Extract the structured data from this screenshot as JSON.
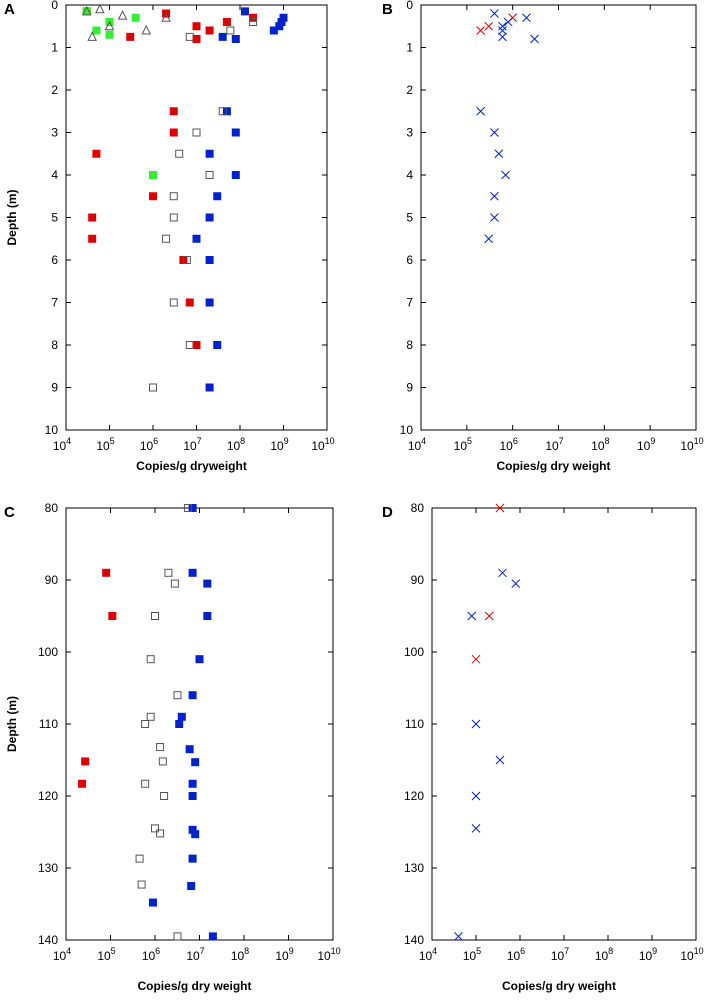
{
  "figure": {
    "colors": {
      "red": "#dd0000",
      "blue": "#0022cc",
      "green": "#33ee33",
      "grey": "#555555"
    }
  },
  "chart_data": [
    {
      "panel": "A",
      "type": "scatter",
      "xscale": "log",
      "xlim": [
        10000,
        10000000000
      ],
      "ylim": [
        0,
        10
      ],
      "y_inverted": true,
      "xlabel": "Copies/g dryweight",
      "ylabel": "Depth (m)",
      "xticks": [
        10000,
        100000,
        1000000,
        10000000,
        100000000,
        1000000000,
        10000000000
      ],
      "xtick_exponents": [
        "4",
        "5",
        "6",
        "7",
        "8",
        "9",
        "10"
      ],
      "yticks": [
        0,
        1,
        2,
        3,
        4,
        5,
        6,
        7,
        8,
        9,
        10
      ],
      "ytick_labels": [
        "0",
        "1",
        "2",
        "3",
        "4",
        "5",
        "6",
        "7",
        "8",
        "9",
        "10"
      ],
      "series": [
        {
          "name": "red filled squares",
          "marker": "square-filled",
          "color": "#dd0000",
          "points": [
            [
              30000,
              0.15
            ],
            [
              2000000,
              0.2
            ],
            [
              200000000,
              0.3
            ],
            [
              50000000,
              0.4
            ],
            [
              10000000,
              0.5
            ],
            [
              20000000,
              0.6
            ],
            [
              300000,
              0.75
            ],
            [
              10000000,
              0.8
            ],
            [
              3000000,
              2.5
            ],
            [
              3000000,
              3.0
            ],
            [
              50000,
              3.5
            ],
            [
              1000000,
              4.5
            ],
            [
              40000,
              5.0
            ],
            [
              40000,
              5.5
            ],
            [
              5000000,
              6.0
            ],
            [
              7000000,
              7.0
            ],
            [
              10000000,
              8.0
            ]
          ]
        },
        {
          "name": "blue filled squares",
          "marker": "square-filled",
          "color": "#0022cc",
          "points": [
            [
              130000000,
              0.15
            ],
            [
              1000000000,
              0.3
            ],
            [
              900000000,
              0.4
            ],
            [
              800000000,
              0.5
            ],
            [
              600000000,
              0.6
            ],
            [
              40000000,
              0.75
            ],
            [
              80000000,
              0.8
            ],
            [
              50000000,
              2.5
            ],
            [
              80000000,
              3.0
            ],
            [
              20000000,
              3.5
            ],
            [
              80000000,
              4.0
            ],
            [
              30000000,
              4.5
            ],
            [
              20000000,
              5.0
            ],
            [
              10000000,
              5.5
            ],
            [
              20000000,
              6.0
            ],
            [
              20000000,
              7.0
            ],
            [
              30000000,
              8.0
            ],
            [
              20000000,
              9.0
            ]
          ]
        },
        {
          "name": "green filled squares",
          "marker": "square-filled",
          "color": "#33ee33",
          "points": [
            [
              30000,
              0.15
            ],
            [
              400000,
              0.3
            ],
            [
              100000,
              0.4
            ],
            [
              50000,
              0.6
            ],
            [
              100000,
              0.7
            ],
            [
              1000000,
              4.0
            ]
          ]
        },
        {
          "name": "open squares",
          "marker": "square-open",
          "color": "#555555",
          "points": [
            [
              200000000,
              0.4
            ],
            [
              60000000,
              0.6
            ],
            [
              7000000,
              0.75
            ],
            [
              40000000,
              2.5
            ],
            [
              10000000,
              3.0
            ],
            [
              4000000,
              3.5
            ],
            [
              20000000,
              4.0
            ],
            [
              3000000,
              4.5
            ],
            [
              3000000,
              5.0
            ],
            [
              2000000,
              5.5
            ],
            [
              6000000,
              6.0
            ],
            [
              3000000,
              7.0
            ],
            [
              7000000,
              8.0
            ],
            [
              1000000,
              9.0
            ]
          ]
        },
        {
          "name": "open triangles",
          "marker": "triangle-open",
          "color": "#555555",
          "points": [
            [
              60000,
              0.1
            ],
            [
              30000,
              0.15
            ],
            [
              200000,
              0.25
            ],
            [
              2000000,
              0.3
            ],
            [
              100000,
              0.5
            ],
            [
              700000,
              0.6
            ],
            [
              40000,
              0.75
            ]
          ]
        }
      ]
    },
    {
      "panel": "B",
      "type": "scatter",
      "xscale": "log",
      "xlim": [
        10000,
        10000000000
      ],
      "ylim": [
        0,
        10
      ],
      "y_inverted": true,
      "xlabel": "Copies/g dry weight",
      "ylabel": "",
      "xticks": [
        10000,
        100000,
        1000000,
        10000000,
        100000000,
        1000000000,
        10000000000
      ],
      "xtick_exponents": [
        "4",
        "5",
        "6",
        "7",
        "8",
        "9",
        "10"
      ],
      "yticks": [
        0,
        1,
        2,
        3,
        4,
        5,
        6,
        7,
        8,
        9,
        10
      ],
      "ytick_labels": [
        "0",
        "1",
        "2",
        "3",
        "4",
        "5",
        "6",
        "7",
        "8",
        "9",
        "10"
      ],
      "series": [
        {
          "name": "red crosses",
          "marker": "x",
          "color": "#dd0000",
          "points": [
            [
              1000000,
              0.3
            ],
            [
              300000,
              0.5
            ],
            [
              200000,
              0.6
            ]
          ]
        },
        {
          "name": "blue crosses",
          "marker": "x",
          "color": "#0022cc",
          "points": [
            [
              400000,
              0.2
            ],
            [
              2000000,
              0.3
            ],
            [
              800000,
              0.4
            ],
            [
              600000,
              0.5
            ],
            [
              600000,
              0.6
            ],
            [
              600000,
              0.75
            ],
            [
              3000000,
              0.8
            ],
            [
              200000,
              2.5
            ],
            [
              400000,
              3.0
            ],
            [
              500000,
              3.5
            ],
            [
              700000,
              4.0
            ],
            [
              400000,
              4.5
            ],
            [
              400000,
              5.0
            ],
            [
              300000,
              5.5
            ]
          ]
        }
      ]
    },
    {
      "panel": "C",
      "type": "scatter",
      "xscale": "log",
      "xlim": [
        10000,
        10000000000
      ],
      "ylim": [
        80,
        140
      ],
      "y_inverted": true,
      "xlabel": "Copies/g dry weight",
      "ylabel": "Depth (m)",
      "xticks": [
        10000,
        100000,
        1000000,
        10000000,
        100000000,
        1000000000,
        10000000000
      ],
      "xtick_exponents": [
        "4",
        "5",
        "6",
        "7",
        "8",
        "9",
        "10"
      ],
      "yticks": [
        80,
        90,
        100,
        110,
        120,
        130,
        140
      ],
      "ytick_labels": [
        "80",
        "90",
        "100",
        "110",
        "120",
        "130",
        "140"
      ],
      "series": [
        {
          "name": "red filled squares",
          "marker": "square-filled",
          "color": "#dd0000",
          "points": [
            [
              80000,
              89
            ],
            [
              110000,
              95
            ],
            [
              27000,
              115.2
            ],
            [
              23000,
              118.3
            ]
          ]
        },
        {
          "name": "blue filled squares",
          "marker": "square-filled",
          "color": "#0022cc",
          "points": [
            [
              7000000,
              80
            ],
            [
              7000000,
              89
            ],
            [
              15000000,
              90.5
            ],
            [
              15000000,
              95
            ],
            [
              10000000,
              101
            ],
            [
              7000000,
              106
            ],
            [
              4000000,
              109
            ],
            [
              3500000,
              110
            ],
            [
              6000000,
              113.5
            ],
            [
              8000000,
              115.3
            ],
            [
              7000000,
              118.3
            ],
            [
              7000000,
              120
            ],
            [
              7000000,
              124.7
            ],
            [
              8000000,
              125.3
            ],
            [
              7000000,
              128.7
            ],
            [
              6500000,
              132.5
            ],
            [
              900000,
              134.8
            ],
            [
              20000000,
              139.5
            ]
          ]
        },
        {
          "name": "open squares",
          "marker": "square-open",
          "color": "#555555",
          "points": [
            [
              5500000,
              80
            ],
            [
              2000000,
              89
            ],
            [
              2800000,
              90.5
            ],
            [
              1000000,
              95
            ],
            [
              800000,
              101
            ],
            [
              3200000,
              106
            ],
            [
              800000,
              109
            ],
            [
              600000,
              110
            ],
            [
              1300000,
              113.2
            ],
            [
              1500000,
              115.2
            ],
            [
              600000,
              118.3
            ],
            [
              1600000,
              120
            ],
            [
              1000000,
              124.5
            ],
            [
              1300000,
              125.2
            ],
            [
              450000,
              128.7
            ],
            [
              500000,
              132.3
            ],
            [
              3200000,
              139.5
            ]
          ]
        }
      ]
    },
    {
      "panel": "D",
      "type": "scatter",
      "xscale": "log",
      "xlim": [
        10000,
        10000000000
      ],
      "ylim": [
        80,
        140
      ],
      "y_inverted": true,
      "xlabel": "Copies/g dry weight",
      "ylabel": "",
      "xticks": [
        10000,
        100000,
        1000000,
        10000000,
        100000000,
        1000000000,
        10000000000
      ],
      "xtick_exponents": [
        "4",
        "5",
        "6",
        "7",
        "8",
        "9",
        "10"
      ],
      "yticks": [
        80,
        90,
        100,
        110,
        120,
        130,
        140
      ],
      "ytick_labels": [
        "80",
        "90",
        "100",
        "110",
        "120",
        "130",
        "140"
      ],
      "series": [
        {
          "name": "red crosses",
          "marker": "x",
          "color": "#dd0000",
          "points": [
            [
              350000,
              80
            ],
            [
              200000,
              95
            ],
            [
              100000,
              101
            ]
          ]
        },
        {
          "name": "blue crosses",
          "marker": "x",
          "color": "#0022cc",
          "points": [
            [
              400000,
              89
            ],
            [
              800000,
              90.5
            ],
            [
              80000,
              95
            ],
            [
              100000,
              110
            ],
            [
              350000,
              115
            ],
            [
              100000,
              120
            ],
            [
              100000,
              124.5
            ],
            [
              40000,
              139.5
            ]
          ]
        }
      ]
    }
  ]
}
